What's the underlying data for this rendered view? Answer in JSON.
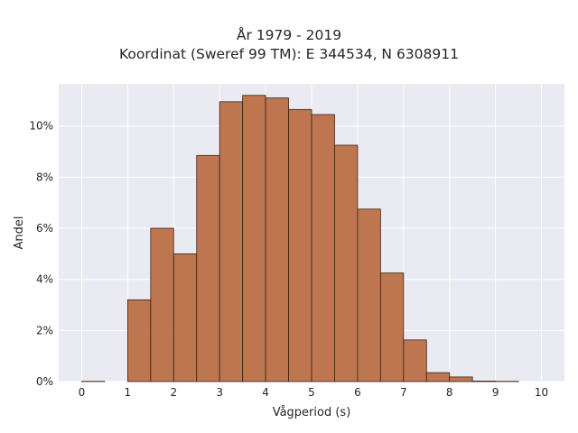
{
  "chart_data": {
    "type": "bar",
    "title": [
      "År 1979 - 2019",
      "Koordinat (Sweref 99 TM): E 344534, N 6308911"
    ],
    "xlabel": "Vågperiod (s)",
    "ylabel": "Andel",
    "xlim": [
      -0.5,
      10.5
    ],
    "ylim": [
      0,
      0.1165
    ],
    "grid": true,
    "bar_color": "#b8693d",
    "bar_edge": "#3a2418",
    "background": "#eaeaf2",
    "bin_width": 0.5,
    "x_ticks": [
      0,
      1,
      2,
      3,
      4,
      5,
      6,
      7,
      8,
      9,
      10
    ],
    "x_tick_labels": [
      "0",
      "1",
      "2",
      "3",
      "4",
      "5",
      "6",
      "7",
      "8",
      "9",
      "10"
    ],
    "y_ticks": [
      0,
      0.02,
      0.04,
      0.06,
      0.08,
      0.1
    ],
    "y_tick_labels": [
      "0%",
      "2%",
      "4%",
      "6%",
      "8%",
      "10%"
    ],
    "bins": [
      {
        "x0": 0.0,
        "x1": 0.5,
        "value": 0.0001
      },
      {
        "x0": 0.5,
        "x1": 1.0,
        "value": 0.0
      },
      {
        "x0": 1.0,
        "x1": 1.5,
        "value": 0.032
      },
      {
        "x0": 1.5,
        "x1": 2.0,
        "value": 0.06
      },
      {
        "x0": 2.0,
        "x1": 2.5,
        "value": 0.05
      },
      {
        "x0": 2.5,
        "x1": 3.0,
        "value": 0.0885
      },
      {
        "x0": 3.0,
        "x1": 3.5,
        "value": 0.1095
      },
      {
        "x0": 3.5,
        "x1": 4.0,
        "value": 0.112
      },
      {
        "x0": 4.0,
        "x1": 4.5,
        "value": 0.111
      },
      {
        "x0": 4.5,
        "x1": 5.0,
        "value": 0.1065
      },
      {
        "x0": 5.0,
        "x1": 5.5,
        "value": 0.1045
      },
      {
        "x0": 5.5,
        "x1": 6.0,
        "value": 0.0925
      },
      {
        "x0": 6.0,
        "x1": 6.5,
        "value": 0.0675
      },
      {
        "x0": 6.5,
        "x1": 7.0,
        "value": 0.0425
      },
      {
        "x0": 7.0,
        "x1": 7.5,
        "value": 0.0163
      },
      {
        "x0": 7.5,
        "x1": 8.0,
        "value": 0.0035
      },
      {
        "x0": 8.0,
        "x1": 8.5,
        "value": 0.0018
      },
      {
        "x0": 8.5,
        "x1": 9.0,
        "value": 0.0002
      },
      {
        "x0": 9.0,
        "x1": 9.5,
        "value": 0.0001
      }
    ]
  }
}
